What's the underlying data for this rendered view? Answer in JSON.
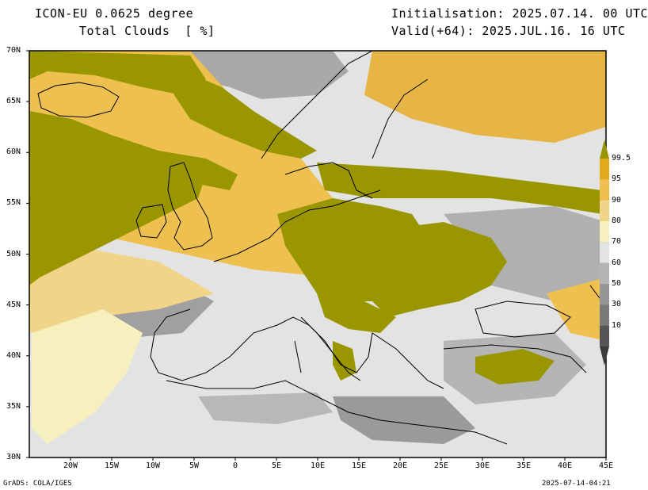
{
  "header": {
    "model": "ICON-EU 0.0625 degree",
    "variable": "Total Clouds  [ %]",
    "init": "Initialisation: 2025.07.14. 00 UTC",
    "valid": "Valid(+64): 2025.JUL.16. 16 UTC"
  },
  "axes": {
    "lat_labels": [
      "70N",
      "65N",
      "60N",
      "55N",
      "50N",
      "45N",
      "40N",
      "35N",
      "30N"
    ],
    "lon_labels": [
      "20W",
      "15W",
      "10W",
      "5W",
      "0",
      "5E",
      "10E",
      "15E",
      "20E",
      "25E",
      "30E",
      "35E",
      "40E",
      "45E"
    ],
    "lat_range": [
      30,
      70
    ],
    "lon_range": [
      -25,
      45
    ]
  },
  "colorbar": {
    "labels": [
      "99.5",
      "95",
      "90",
      "80",
      "70",
      "60",
      "50",
      "30",
      "10"
    ],
    "colors": [
      "#e3a91c",
      "#eec050",
      "#f0d488",
      "#f6f0bf",
      "#e3e3e3",
      "#b4b4b4",
      "#969696",
      "#7a7a7a",
      "#555555"
    ],
    "top_color": "#9a9600"
  },
  "palette": {
    "overcast": "#9a9600",
    "high": "#eec050",
    "mid": "#f6f0bf",
    "clear": "#e3e3e3",
    "low_gray": "#9a9a9a"
  },
  "footer": {
    "left": "GrADS: COLA/IGES",
    "right": "2025-07-14-04:21"
  }
}
